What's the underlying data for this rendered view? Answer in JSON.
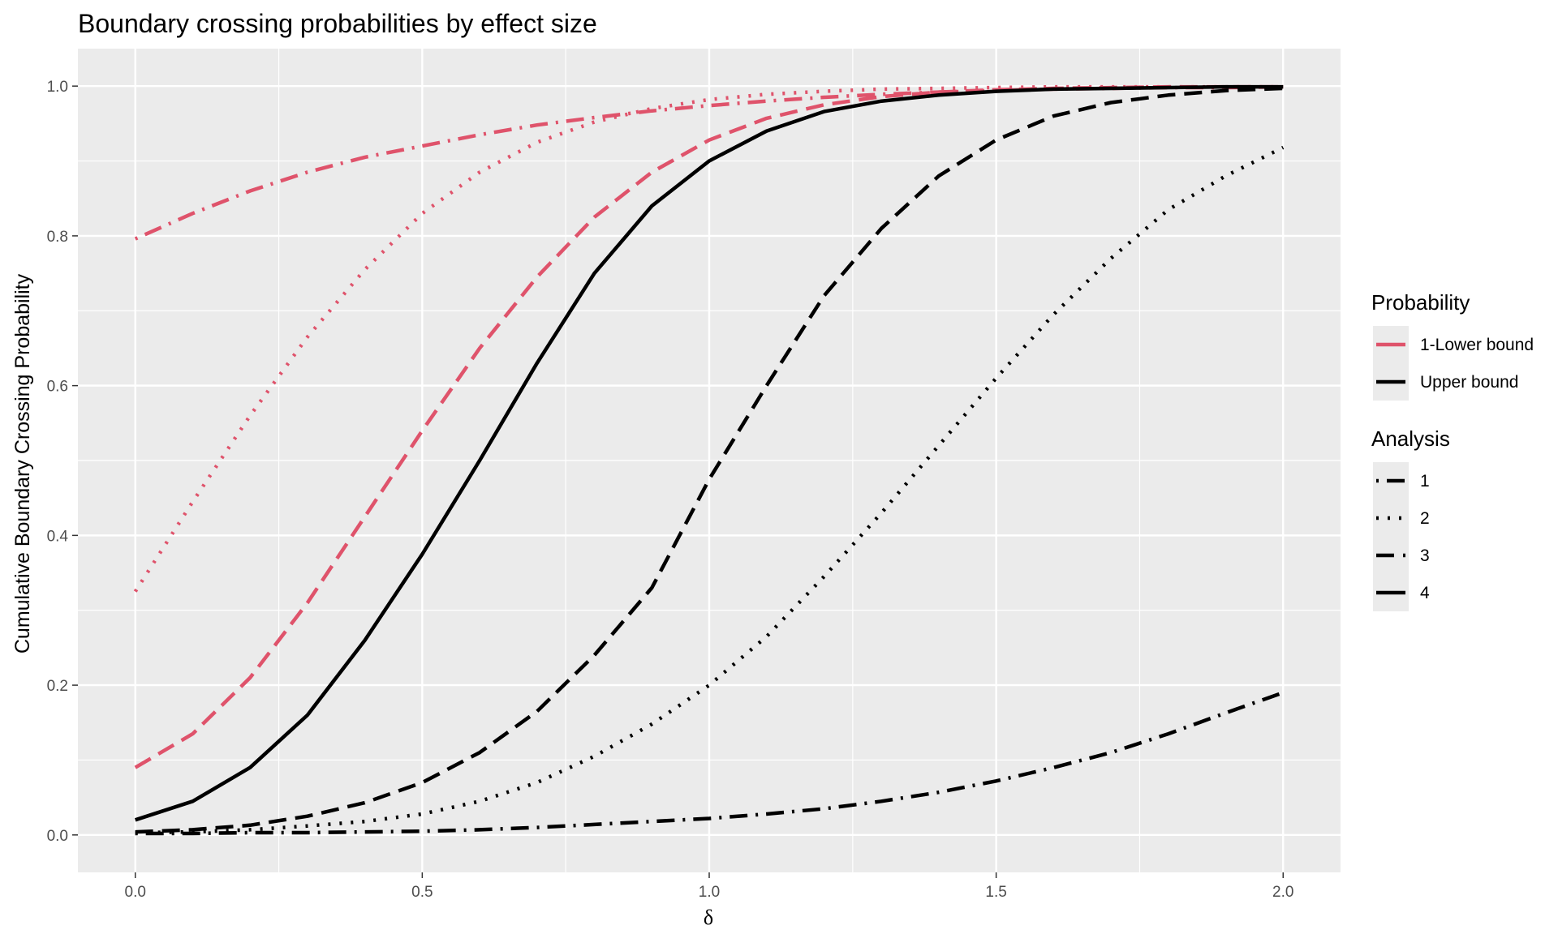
{
  "chart_data": {
    "type": "line",
    "title": "Boundary crossing probabilities by effect size",
    "xlabel": "δ",
    "ylabel": "Cumulative Boundary Crossing Probability",
    "xlim": [
      -0.1,
      2.1
    ],
    "ylim": [
      -0.05,
      1.05
    ],
    "xticks": [
      0.0,
      0.5,
      1.0,
      1.5,
      2.0
    ],
    "xtick_labels": [
      "0.0",
      "0.5",
      "1.0",
      "1.5",
      "2.0"
    ],
    "yticks": [
      0.0,
      0.2,
      0.4,
      0.6,
      0.8,
      1.0
    ],
    "ytick_labels": [
      "0.0",
      "0.2",
      "0.4",
      "0.6",
      "0.8",
      "1.0"
    ],
    "grid": true,
    "legend_placement": "right",
    "colors": {
      "lower": "#DF536B",
      "upper": "#000000",
      "panel": "#EBEBEB",
      "grid": "#FFFFFF"
    },
    "legends": [
      {
        "title": "Probability",
        "items": [
          {
            "label": "1-Lower bound",
            "key": "lower"
          },
          {
            "label": "Upper bound",
            "key": "upper"
          }
        ]
      },
      {
        "title": "Analysis",
        "items": [
          {
            "label": "1",
            "dash": "dotdash"
          },
          {
            "label": "2",
            "dash": "dotted"
          },
          {
            "label": "3",
            "dash": "dashed"
          },
          {
            "label": "4",
            "dash": "solid"
          }
        ]
      }
    ],
    "x": [
      0.0,
      0.1,
      0.2,
      0.3,
      0.4,
      0.5,
      0.6,
      0.7,
      0.8,
      0.9,
      1.0,
      1.1,
      1.2,
      1.3,
      1.4,
      1.5,
      1.6,
      1.7,
      1.8,
      1.9,
      2.0
    ],
    "series": [
      {
        "probability": "1-Lower bound",
        "analysis": "1",
        "color_key": "lower",
        "dash": "dotdash",
        "values": [
          0.796,
          0.83,
          0.86,
          0.885,
          0.905,
          0.92,
          0.935,
          0.948,
          0.958,
          0.967,
          0.974,
          0.98,
          0.985,
          0.989,
          0.992,
          0.994,
          0.996,
          0.997,
          0.998,
          0.998,
          0.999
        ]
      },
      {
        "probability": "1-Lower bound",
        "analysis": "2",
        "color_key": "lower",
        "dash": "dotted",
        "values": [
          0.325,
          0.445,
          0.56,
          0.665,
          0.755,
          0.83,
          0.885,
          0.925,
          0.952,
          0.97,
          0.982,
          0.989,
          0.993,
          0.996,
          0.997,
          0.998,
          0.999,
          0.999,
          0.999,
          0.999,
          0.999
        ]
      },
      {
        "probability": "1-Lower bound",
        "analysis": "3",
        "color_key": "lower",
        "dash": "dashed",
        "values": [
          0.09,
          0.135,
          0.21,
          0.31,
          0.425,
          0.54,
          0.65,
          0.745,
          0.825,
          0.885,
          0.928,
          0.957,
          0.975,
          0.986,
          0.992,
          0.995,
          0.997,
          0.998,
          0.999,
          0.999,
          0.999
        ]
      },
      {
        "probability": "Upper bound",
        "analysis": "1",
        "color_key": "upper",
        "dash": "dotdash",
        "values": [
          0.002,
          0.002,
          0.003,
          0.003,
          0.004,
          0.005,
          0.007,
          0.01,
          0.014,
          0.018,
          0.022,
          0.028,
          0.035,
          0.045,
          0.057,
          0.072,
          0.09,
          0.11,
          0.135,
          0.163,
          0.19
        ]
      },
      {
        "probability": "Upper bound",
        "analysis": "2",
        "color_key": "upper",
        "dash": "dotted",
        "values": [
          0.003,
          0.004,
          0.007,
          0.012,
          0.018,
          0.028,
          0.045,
          0.07,
          0.105,
          0.148,
          0.2,
          0.265,
          0.345,
          0.43,
          0.52,
          0.61,
          0.695,
          0.77,
          0.835,
          0.88,
          0.918
        ]
      },
      {
        "probability": "Upper bound",
        "analysis": "3",
        "color_key": "upper",
        "dash": "dashed",
        "values": [
          0.004,
          0.007,
          0.013,
          0.025,
          0.043,
          0.07,
          0.11,
          0.165,
          0.24,
          0.33,
          0.475,
          0.6,
          0.72,
          0.81,
          0.88,
          0.928,
          0.96,
          0.978,
          0.988,
          0.994,
          0.997
        ]
      },
      {
        "probability": "Upper bound",
        "analysis": "4",
        "color_key": "upper",
        "dash": "solid",
        "values": [
          0.02,
          0.045,
          0.09,
          0.16,
          0.26,
          0.375,
          0.5,
          0.63,
          0.75,
          0.84,
          0.9,
          0.94,
          0.966,
          0.98,
          0.988,
          0.993,
          0.996,
          0.997,
          0.998,
          0.999,
          0.999
        ]
      }
    ]
  }
}
